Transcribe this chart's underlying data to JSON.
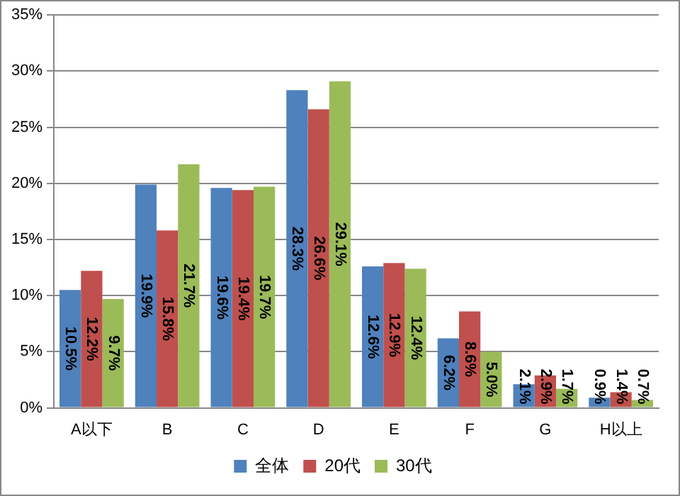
{
  "chart_data": {
    "type": "bar",
    "categories": [
      "A以下",
      "B",
      "C",
      "D",
      "E",
      "F",
      "G",
      "H以上"
    ],
    "series": [
      {
        "name": "全体",
        "color": "#4f81bd",
        "values": [
          10.5,
          19.9,
          19.6,
          28.3,
          12.6,
          6.2,
          2.1,
          0.9
        ]
      },
      {
        "name": "20代",
        "color": "#c0504d",
        "values": [
          12.2,
          15.8,
          19.4,
          26.6,
          12.9,
          8.6,
          2.9,
          1.4
        ]
      },
      {
        "name": "30代",
        "color": "#9bbb59",
        "values": [
          9.7,
          21.7,
          19.7,
          29.1,
          12.4,
          5.0,
          1.7,
          0.7
        ]
      }
    ],
    "ylim": [
      0,
      35
    ],
    "yticks": [
      {
        "value": 0,
        "label": "0%"
      },
      {
        "value": 5,
        "label": "5%"
      },
      {
        "value": 10,
        "label": "10%"
      },
      {
        "value": 15,
        "label": "15%"
      },
      {
        "value": 20,
        "label": "20%"
      },
      {
        "value": 25,
        "label": "25%"
      },
      {
        "value": 30,
        "label": "30%"
      },
      {
        "value": 35,
        "label": "35%"
      }
    ],
    "value_labels": [
      [
        "10.5%",
        "19.9%",
        "19.6%",
        "28.3%",
        "12.6%",
        "6.2%",
        "2.1%",
        "0.9%"
      ],
      [
        "12.2%",
        "15.8%",
        "19.4%",
        "26.6%",
        "12.9%",
        "8.6%",
        "2.9%",
        "1.4%"
      ],
      [
        "9.7%",
        "21.7%",
        "19.7%",
        "29.1%",
        "12.4%",
        "5.0%",
        "1.7%",
        "0.7%"
      ]
    ],
    "grid": "y",
    "legend": "bottom"
  }
}
